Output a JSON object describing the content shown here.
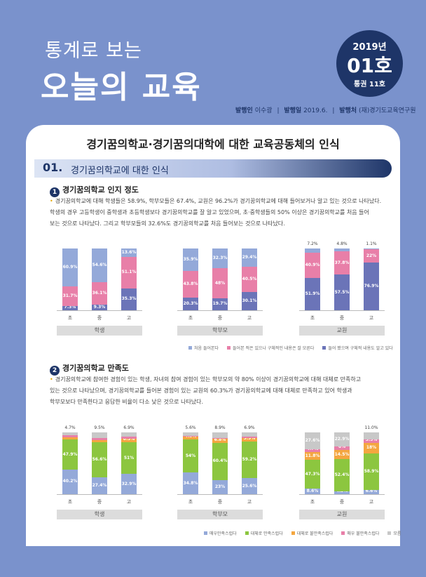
{
  "header": {
    "subtitle": "통계로 보는",
    "title": "오늘의 교육",
    "badge": {
      "year": "2019년",
      "issue": "01호",
      "volume": "통권 11호"
    },
    "pub": {
      "publisher_label": "발행인",
      "publisher": "이수광",
      "date_label": "발행일",
      "date": "2019.6.",
      "org_label": "발행처",
      "org": "(재)경기도교육연구원"
    }
  },
  "main_title": "경기꿈의학교·경기꿈의대학에 대한 교육공동체의 인식",
  "section": {
    "number": "01.",
    "title": "경기꿈의학교에 대한 인식"
  },
  "part1": {
    "marker": "1",
    "heading": "경기꿈의학교 인지 정도",
    "line1": "경기꿈의학교에 대해 학생들은 58.9%, 학부모들은 67.4%, 교원은 96.2%가 경기꿈의학교에 대해 들어보거나 알고 있는 것으로 나타났다.",
    "line2": "학생의 경우 고등학생이 중학생과 초등학생보다 경기꿈의학교를 잘 알고 있었으며, 초·중학생들의 50% 이상은 경기꿈의학교를 처음 들어",
    "line3": "보는 것으로 나타났다. 그리고 학부모들의 32.6%도 경기꿈의학교를 처음 들어보는 것으로 나타났다."
  },
  "part2": {
    "marker": "2",
    "heading": "경기꿈의학교 만족도",
    "line1": "경기꿈의학교에 참여한 경험이 있는 학생, 자녀의 참여 경험이 있는 학부모의 약 80% 이상이 경기꿈의학교에 대해 대체로 만족하고",
    "line2": "있는 것으로 나타났으며, 경기꿈의학교를 들어본 경험이 있는 교원의 60.3%가 경기꿈의학교에 대해 대체로 만족하고 있어 학생과",
    "line3": "학부모보다 만족한다고 응답한 비율이 다소 낮은 것으로 나타났다."
  },
  "chart_data": [
    {
      "type": "bar",
      "stacked": true,
      "title": "경기꿈의학교 인지 정도",
      "groups": [
        "학생",
        "학부모",
        "교원"
      ],
      "categories": [
        "초",
        "중",
        "고"
      ],
      "colors": [
        "#6b74b8",
        "#e87fa8",
        "#94a9d9"
      ],
      "series": [
        {
          "name": "들어 봤으며 구체적 내용도 알고 있다",
          "values": [
            [
              7.3,
              9.3,
              35.3
            ],
            [
              20.3,
              19.7,
              30.1
            ],
            [
              51.9,
              57.5,
              76.9
            ]
          ]
        },
        {
          "name": "들어본 적은 있으나 구체적인 내용은 잘 모른다",
          "values": [
            [
              31.7,
              36.1,
              51.1
            ],
            [
              43.8,
              48,
              40.5
            ],
            [
              40.9,
              37.8,
              22
            ]
          ]
        },
        {
          "name": "처음 들어본다",
          "values": [
            [
              60.9,
              54.6,
              13.6
            ],
            [
              35.9,
              32.3,
              29.4
            ],
            [
              7.2,
              4.8,
              1.1
            ]
          ]
        }
      ],
      "labels": [
        [
          [
            "7.3%",
            "31.7%",
            "60.9%"
          ],
          [
            "9.3%",
            "36.1%",
            "54.6%"
          ],
          [
            "35.3%",
            "51.1%",
            "13.6%"
          ]
        ],
        [
          [
            "20.3%",
            "43.8%",
            "35.9%"
          ],
          [
            "19.7%",
            "48%",
            "32.3%"
          ],
          [
            "30.1%",
            "40.5%",
            "29.4%"
          ]
        ],
        [
          [
            "51.9%",
            "40.9%",
            "7.2%"
          ],
          [
            "57.5%",
            "37.8%",
            "4.8%"
          ],
          [
            "76.9%",
            "22%",
            "1.1%"
          ]
        ]
      ],
      "legend": [
        "처음 들어본다",
        "들어본 적은 있으나 구체적인 내용은 잘 모른다",
        "들어 봤으며 구체적 내용도 알고 있다"
      ],
      "ylim": [
        0,
        100
      ]
    },
    {
      "type": "bar",
      "stacked": true,
      "title": "경기꿈의학교 만족도",
      "groups": [
        "학생",
        "학부모",
        "교원"
      ],
      "categories": [
        "초",
        "중",
        "고"
      ],
      "colors": [
        "#94a9d9",
        "#8cc63f",
        "#f4a640",
        "#e87fa8",
        "#c8c8c8"
      ],
      "series": [
        {
          "name": "매우 만족스럽다",
          "values": [
            [
              40.2,
              27.4,
              32.9
            ],
            [
              34.8,
              23,
              25.6
            ],
            [
              8.6,
              4.3,
              6.6
            ]
          ]
        },
        {
          "name": "대체로 만족스럽다",
          "values": [
            [
              47.9,
              56.6,
              51
            ],
            [
              54,
              60.4,
              59.2
            ],
            [
              47.3,
              52.4,
              58.9
            ]
          ]
        },
        {
          "name": "대체로 불만족스럽다",
          "values": [
            [
              3.9,
              3.3,
              6.3
            ],
            [
              4.5,
              6.8,
              5.9
            ],
            [
              11.8,
              14.5,
              18
            ]
          ]
        },
        {
          "name": "매우 불만족스럽다",
          "values": [
            [
              3.3,
              3.2,
              2.9
            ],
            [
              1.1,
              0.9,
              2.4
            ],
            [
              4.7,
              6.0,
              5.5
            ]
          ]
        },
        {
          "name": "모름",
          "values": [
            [
              4.7,
              9.5,
              6.9
            ],
            [
              5.6,
              8.9,
              6.9
            ],
            [
              27.6,
              22.9,
              11.0
            ]
          ]
        }
      ],
      "labels": [
        [
          [
            "40.2%",
            "47.9%",
            "3.9%",
            "",
            "4.7%"
          ],
          [
            "27.4%",
            "56.6%",
            "3.3%",
            "",
            "9.5%"
          ],
          [
            "32.9%",
            "51%",
            "6.3%",
            "",
            "6.9%"
          ]
        ],
        [
          [
            "34.8%",
            "54%",
            "4.5%",
            "",
            "5.6%"
          ],
          [
            "23%",
            "60.4%",
            "6.8%",
            "",
            "8.9%"
          ],
          [
            "25.6%",
            "59.2%",
            "5.9%",
            "",
            "6.9%"
          ]
        ],
        [
          [
            "8.6%",
            "47.3%",
            "11.8%",
            "4.7%",
            "27.6%"
          ],
          [
            "4.3%",
            "52.4%",
            "14.5%",
            "6%",
            "22.9%"
          ],
          [
            "6.6%",
            "58.9%",
            "18%",
            "5.5%",
            "11.0%"
          ]
        ]
      ],
      "legend": [
        "매우만족스럽다",
        "대체로 만족스럽다",
        "대체로 불만족스럽다",
        "매우 불만족스럽다",
        "모름"
      ],
      "ylim": [
        0,
        100
      ]
    }
  ],
  "page_number": "01"
}
